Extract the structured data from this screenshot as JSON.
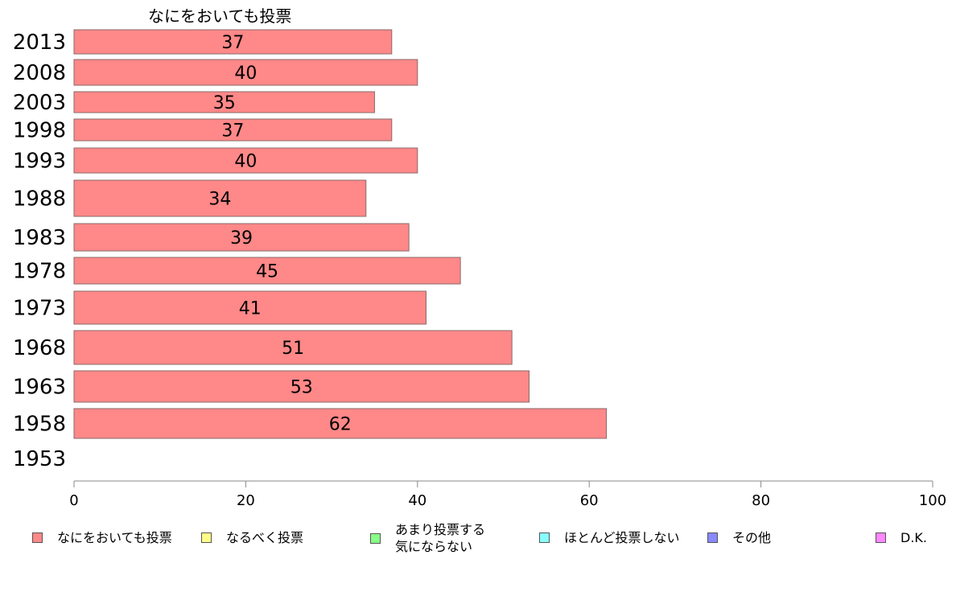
{
  "chart_data": {
    "type": "bar",
    "orientation": "horizontal",
    "title": "なにをおいても投票",
    "categories": [
      "2013",
      "2008",
      "2003",
      "1998",
      "1993",
      "1988",
      "1983",
      "1978",
      "1973",
      "1968",
      "1963",
      "1958",
      "1953"
    ],
    "series": [
      {
        "name": "なにをおいても投票",
        "color": "#ff8888",
        "values": [
          37,
          40,
          35,
          37,
          40,
          34,
          39,
          45,
          41,
          51,
          53,
          62,
          null
        ],
        "labels": [
          "37",
          "40",
          "35",
          "37",
          "40",
          "34",
          "39",
          "45",
          "41",
          "51",
          "53",
          "62",
          ""
        ]
      }
    ],
    "xlim": [
      0,
      100
    ],
    "xticks": [
      "0",
      "20",
      "40",
      "60",
      "80",
      "100"
    ],
    "grid": false,
    "legend_position": "bottom",
    "legend": [
      {
        "label": "なにをおいても投票",
        "color": "#ff8888"
      },
      {
        "label": "なるべく投票",
        "color": "#ffff88"
      },
      {
        "label": "あまり投票する\n気にならない",
        "color": "#88ff88"
      },
      {
        "label": "ほとんど投票しない",
        "color": "#88ffff"
      },
      {
        "label": "その他",
        "color": "#8888ff"
      },
      {
        "label": "D.K.",
        "color": "#ff88ff"
      }
    ]
  }
}
